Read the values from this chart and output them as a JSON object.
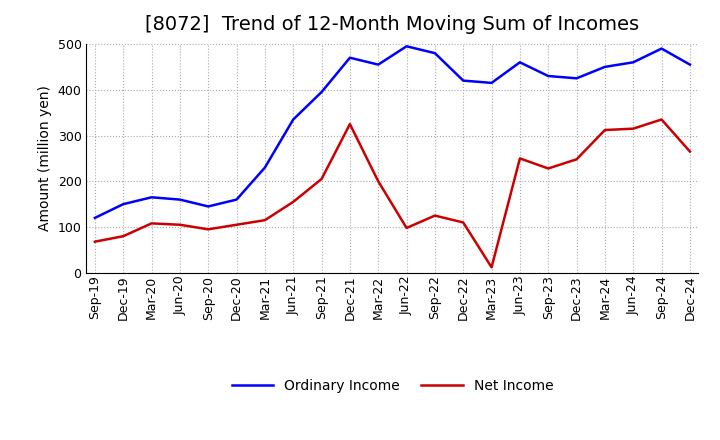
{
  "title": "[8072]  Trend of 12-Month Moving Sum of Incomes",
  "ylabel": "Amount (million yen)",
  "ylim": [
    0,
    500
  ],
  "yticks": [
    0,
    100,
    200,
    300,
    400,
    500
  ],
  "x_labels": [
    "Sep-19",
    "Dec-19",
    "Mar-20",
    "Jun-20",
    "Sep-20",
    "Dec-20",
    "Mar-21",
    "Jun-21",
    "Sep-21",
    "Dec-21",
    "Mar-22",
    "Jun-22",
    "Sep-22",
    "Dec-22",
    "Mar-23",
    "Jun-23",
    "Sep-23",
    "Dec-23",
    "Mar-24",
    "Jun-24",
    "Sep-24",
    "Dec-24"
  ],
  "ordinary_income": [
    120,
    150,
    165,
    160,
    145,
    160,
    230,
    335,
    395,
    470,
    455,
    495,
    480,
    420,
    415,
    460,
    430,
    425,
    450,
    460,
    490,
    455
  ],
  "net_income": [
    68,
    80,
    108,
    105,
    95,
    105,
    115,
    155,
    205,
    325,
    200,
    98,
    125,
    110,
    12,
    250,
    228,
    248,
    312,
    315,
    335,
    265
  ],
  "ordinary_color": "#0000ff",
  "net_color": "#cc0000",
  "background_color": "#ffffff",
  "grid_color": "#aaaaaa",
  "legend_ordinary": "Ordinary Income",
  "legend_net": "Net Income",
  "title_fontsize": 14,
  "axis_fontsize": 10,
  "tick_fontsize": 9,
  "legend_fontsize": 10
}
